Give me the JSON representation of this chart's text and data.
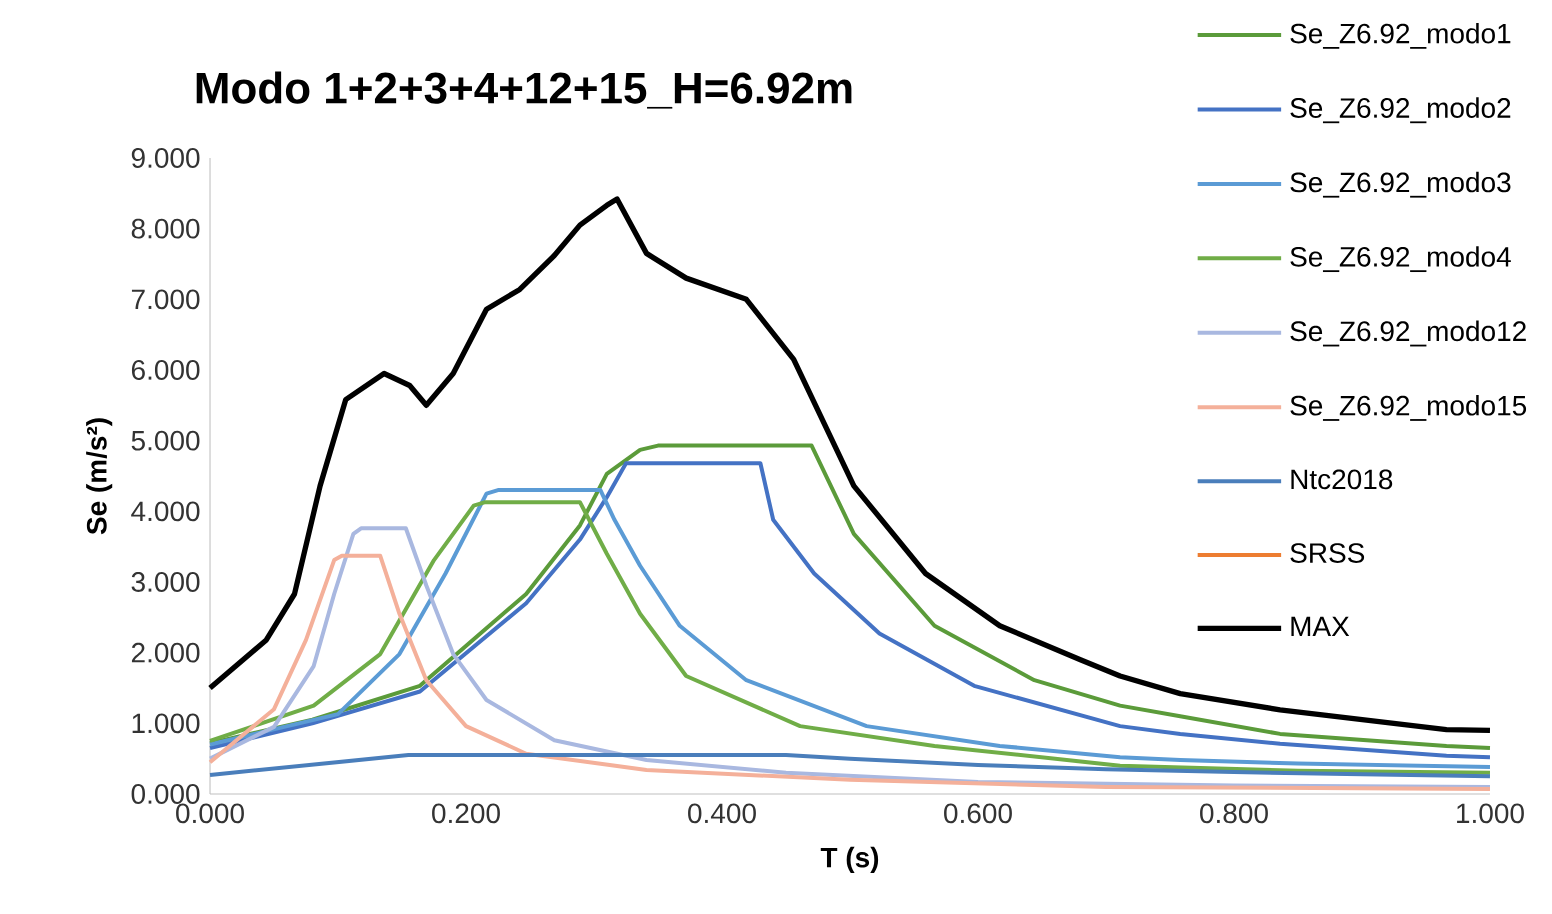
{
  "chart_data": {
    "type": "line",
    "title": "Modo 1+2+3+4+12+15_H=6.92m",
    "xlabel": "T (s)",
    "ylabel": "Se (m/s²)",
    "xlim": [
      0,
      1
    ],
    "ylim": [
      0,
      9
    ],
    "xticks": [
      {
        "value": 0,
        "label": "0.000"
      },
      {
        "value": 0.2,
        "label": "0.200"
      },
      {
        "value": 0.4,
        "label": "0.400"
      },
      {
        "value": 0.6,
        "label": "0.600"
      },
      {
        "value": 0.8,
        "label": "0.800"
      },
      {
        "value": 1,
        "label": "1.000"
      }
    ],
    "yticks": [
      {
        "value": 0,
        "label": "0.000"
      },
      {
        "value": 1,
        "label": "1.000"
      },
      {
        "value": 2,
        "label": "2.000"
      },
      {
        "value": 3,
        "label": "3.000"
      },
      {
        "value": 4,
        "label": "4.000"
      },
      {
        "value": 5,
        "label": "5.000"
      },
      {
        "value": 6,
        "label": "6.000"
      },
      {
        "value": 7,
        "label": "7.000"
      },
      {
        "value": 8,
        "label": "8.000"
      },
      {
        "value": 9,
        "label": "9.000"
      }
    ],
    "legend": "top right",
    "series": [
      {
        "name": "Se_Z6.92_modo1",
        "color": "#5b9b3a",
        "x": [
          0,
          0.08,
          0.164,
          0.247,
          0.289,
          0.31,
          0.336,
          0.35,
          0.456,
          0.47,
          0.503,
          0.566,
          0.644,
          0.711,
          0.758,
          0.836,
          0.966,
          1
        ],
        "values": [
          0.72,
          1.05,
          1.53,
          2.83,
          3.8,
          4.53,
          4.87,
          4.93,
          4.93,
          4.93,
          3.68,
          2.38,
          1.61,
          1.25,
          1.1,
          0.85,
          0.68,
          0.65
        ]
      },
      {
        "name": "Se_Z6.92_modo2",
        "color": "#4472c4",
        "x": [
          0,
          0.08,
          0.164,
          0.247,
          0.289,
          0.31,
          0.325,
          0.417,
          0.43,
          0.44,
          0.472,
          0.523,
          0.597,
          0.711,
          0.758,
          0.836,
          0.966,
          1
        ],
        "values": [
          0.65,
          1.0,
          1.45,
          2.7,
          3.6,
          4.2,
          4.68,
          4.68,
          4.68,
          3.88,
          3.12,
          2.27,
          1.53,
          0.96,
          0.85,
          0.71,
          0.54,
          0.52
        ]
      },
      {
        "name": "Se_Z6.92_modo3",
        "color": "#5b9bd5",
        "x": [
          0,
          0.1,
          0.148,
          0.184,
          0.216,
          0.225,
          0.305,
          0.316,
          0.336,
          0.367,
          0.419,
          0.513,
          0.617,
          0.711,
          0.758,
          0.85,
          1
        ],
        "values": [
          0.7,
          1.13,
          1.98,
          3.12,
          4.25,
          4.3,
          4.3,
          3.88,
          3.23,
          2.38,
          1.61,
          0.96,
          0.68,
          0.52,
          0.48,
          0.43,
          0.38
        ]
      },
      {
        "name": "Se_Z6.92_modo4",
        "color": "#70ad47",
        "x": [
          0,
          0.081,
          0.133,
          0.175,
          0.206,
          0.215,
          0.289,
          0.31,
          0.336,
          0.372,
          0.461,
          0.566,
          0.711,
          0.85,
          1
        ],
        "values": [
          0.75,
          1.25,
          1.98,
          3.31,
          4.08,
          4.13,
          4.13,
          3.4,
          2.55,
          1.67,
          0.96,
          0.68,
          0.4,
          0.33,
          0.3
        ]
      },
      {
        "name": "Se_Z6.92_modo12",
        "color": "#a9b8e0",
        "x": [
          0,
          0.05,
          0.081,
          0.097,
          0.112,
          0.118,
          0.153,
          0.169,
          0.19,
          0.216,
          0.269,
          0.341,
          0.45,
          0.6,
          0.8,
          1
        ],
        "values": [
          0.5,
          0.95,
          1.81,
          2.83,
          3.68,
          3.76,
          3.76,
          2.95,
          1.98,
          1.33,
          0.76,
          0.48,
          0.3,
          0.17,
          0.12,
          0.1
        ]
      },
      {
        "name": "Se_Z6.92_modo15",
        "color": "#f4b09a",
        "x": [
          0,
          0.05,
          0.075,
          0.097,
          0.103,
          0.133,
          0.148,
          0.169,
          0.2,
          0.247,
          0.341,
          0.5,
          0.7,
          1
        ],
        "values": [
          0.45,
          1.2,
          2.18,
          3.31,
          3.37,
          3.37,
          2.55,
          1.61,
          0.96,
          0.57,
          0.34,
          0.2,
          0.1,
          0.07
        ]
      },
      {
        "name": "Ntc2018",
        "color": "#4a7ebb",
        "x": [
          0,
          0.155,
          0.45,
          0.5,
          0.6,
          0.7,
          0.8,
          0.9,
          1
        ],
        "values": [
          0.27,
          0.55,
          0.55,
          0.5,
          0.41,
          0.35,
          0.31,
          0.28,
          0.25
        ]
      },
      {
        "name": "SRSS",
        "color": "#ed7d31"
      },
      {
        "name": "MAX",
        "color": "#000000",
        "x": [
          0,
          0.044,
          0.066,
          0.086,
          0.106,
          0.136,
          0.156,
          0.169,
          0.19,
          0.216,
          0.242,
          0.269,
          0.289,
          0.31,
          0.318,
          0.341,
          0.372,
          0.419,
          0.456,
          0.503,
          0.559,
          0.617,
          0.68,
          0.711,
          0.758,
          0.836,
          0.966,
          1
        ],
        "values": [
          1.5,
          2.18,
          2.83,
          4.36,
          5.58,
          5.95,
          5.78,
          5.5,
          5.95,
          6.86,
          7.14,
          7.62,
          8.05,
          8.33,
          8.42,
          7.65,
          7.3,
          7.0,
          6.15,
          4.36,
          3.12,
          2.38,
          1.9,
          1.67,
          1.42,
          1.19,
          0.91,
          0.9
        ]
      }
    ]
  }
}
